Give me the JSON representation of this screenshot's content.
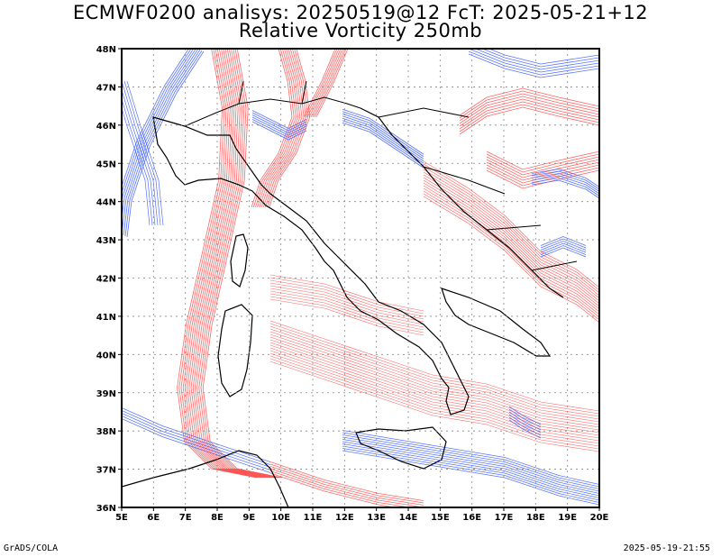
{
  "header": {
    "title_line1": "ECMWF0200 analisys: 20250519@12 FcT: 2025-05-21+12",
    "title_line2": "Relative Vorticity 250mb"
  },
  "map": {
    "lon_labels": [
      "5E",
      "6E",
      "7E",
      "8E",
      "9E",
      "10E",
      "11E",
      "12E",
      "13E",
      "14E",
      "15E",
      "16E",
      "17E",
      "18E",
      "19E",
      "20E"
    ],
    "lat_labels": [
      "36N",
      "37N",
      "38N",
      "39N",
      "40N",
      "41N",
      "42N",
      "43N",
      "44N",
      "45N",
      "46N",
      "47N",
      "48N"
    ],
    "lon_range": [
      5,
      20
    ],
    "lat_range": [
      36,
      48
    ],
    "grid": true,
    "colors": {
      "positive_vorticity": "#ff4a4a",
      "negative_vorticity": "#3a5aff",
      "coastline": "#000000",
      "grid": "#888888"
    }
  },
  "footer": {
    "left": "GrADS/COLA",
    "right": "2025-05-19-21:55"
  }
}
